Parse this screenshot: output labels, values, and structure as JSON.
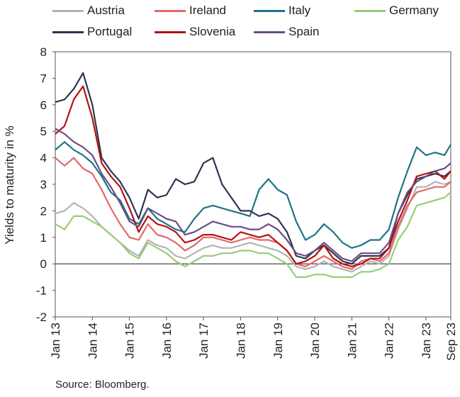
{
  "legend": [
    {
      "name": "Austria",
      "color": "#b3b3b3"
    },
    {
      "name": "Ireland",
      "color": "#e06a6a"
    },
    {
      "name": "Italy",
      "color": "#1e7485"
    },
    {
      "name": "Germany",
      "color": "#99cc77"
    },
    {
      "name": "Portugal",
      "color": "#2b3650"
    },
    {
      "name": "Slovenia",
      "color": "#b31212"
    },
    {
      "name": "Spain",
      "color": "#6b4d83"
    }
  ],
  "source": "Source: Bloomberg.",
  "chart_data": {
    "type": "line",
    "title": "",
    "ylabel": "Yields to maturity in %",
    "xlabel": "",
    "ylim": [
      -2,
      8
    ],
    "xlim": [
      2013.0,
      2023.67
    ],
    "yticks": [
      "8",
      "7",
      "6",
      "5",
      "4",
      "3",
      "2",
      "1",
      "0",
      "-1",
      "-2"
    ],
    "xticks": [
      "Jan 13",
      "Jan 14",
      "Jan 15",
      "Jan 16",
      "Jan 17",
      "Jan 18",
      "Jan 19",
      "Jan 20",
      "Jan 21",
      "Jan 22",
      "Jan 23",
      "Sep 23"
    ],
    "grid": false,
    "zero_line": true,
    "legend_position": "top",
    "series": [
      {
        "name": "Austria",
        "color": "#b3b3b3",
        "x": [
          2013.0,
          2013.25,
          2013.5,
          2013.75,
          2014.0,
          2014.25,
          2014.5,
          2014.75,
          2015.0,
          2015.25,
          2015.5,
          2015.75,
          2016.0,
          2016.25,
          2016.5,
          2016.75,
          2017.0,
          2017.25,
          2017.5,
          2017.75,
          2018.0,
          2018.25,
          2018.5,
          2018.75,
          2019.0,
          2019.25,
          2019.5,
          2019.75,
          2020.0,
          2020.25,
          2020.5,
          2020.75,
          2021.0,
          2021.25,
          2021.5,
          2021.75,
          2022.0,
          2022.25,
          2022.5,
          2022.75,
          2023.0,
          2023.25,
          2023.5,
          2023.67
        ],
        "values": [
          1.9,
          2.0,
          2.3,
          2.1,
          1.8,
          1.4,
          1.1,
          0.8,
          0.5,
          0.3,
          0.9,
          0.7,
          0.6,
          0.3,
          0.2,
          0.4,
          0.6,
          0.7,
          0.6,
          0.6,
          0.7,
          0.8,
          0.7,
          0.6,
          0.5,
          0.3,
          -0.1,
          -0.2,
          -0.1,
          0.1,
          -0.1,
          -0.2,
          -0.3,
          -0.1,
          0.1,
          0.0,
          0.3,
          1.3,
          2.1,
          2.9,
          2.9,
          3.1,
          3.0,
          3.1
        ]
      },
      {
        "name": "Ireland",
        "color": "#e06a6a",
        "x": [
          2013.0,
          2013.25,
          2013.5,
          2013.75,
          2014.0,
          2014.25,
          2014.5,
          2014.75,
          2015.0,
          2015.25,
          2015.5,
          2015.75,
          2016.0,
          2016.25,
          2016.5,
          2016.75,
          2017.0,
          2017.25,
          2017.5,
          2017.75,
          2018.0,
          2018.25,
          2018.5,
          2018.75,
          2019.0,
          2019.25,
          2019.5,
          2019.75,
          2020.0,
          2020.25,
          2020.5,
          2020.75,
          2021.0,
          2021.25,
          2021.5,
          2021.75,
          2022.0,
          2022.25,
          2022.5,
          2022.75,
          2023.0,
          2023.25,
          2023.5,
          2023.67
        ],
        "values": [
          4.0,
          3.7,
          4.0,
          3.6,
          3.4,
          2.8,
          2.1,
          1.5,
          1.0,
          0.9,
          1.5,
          1.1,
          1.0,
          0.8,
          0.5,
          0.7,
          1.0,
          1.0,
          0.9,
          0.8,
          0.9,
          1.0,
          0.9,
          0.9,
          0.8,
          0.5,
          0.0,
          -0.1,
          0.1,
          0.3,
          0.1,
          -0.1,
          -0.2,
          0.1,
          0.2,
          0.1,
          0.4,
          1.4,
          2.2,
          2.7,
          2.8,
          2.9,
          2.9,
          3.1
        ]
      },
      {
        "name": "Italy",
        "color": "#1e7485",
        "x": [
          2013.0,
          2013.25,
          2013.5,
          2013.75,
          2014.0,
          2014.25,
          2014.5,
          2014.75,
          2015.0,
          2015.25,
          2015.5,
          2015.75,
          2016.0,
          2016.25,
          2016.5,
          2016.75,
          2017.0,
          2017.25,
          2017.5,
          2017.75,
          2018.0,
          2018.25,
          2018.5,
          2018.75,
          2019.0,
          2019.25,
          2019.5,
          2019.75,
          2020.0,
          2020.25,
          2020.5,
          2020.75,
          2021.0,
          2021.25,
          2021.5,
          2021.75,
          2022.0,
          2022.25,
          2022.5,
          2022.75,
          2023.0,
          2023.25,
          2023.5,
          2023.67
        ],
        "values": [
          4.3,
          4.6,
          4.3,
          4.1,
          3.8,
          3.3,
          2.7,
          2.4,
          1.7,
          1.5,
          2.1,
          1.7,
          1.5,
          1.3,
          1.2,
          1.7,
          2.1,
          2.2,
          2.1,
          2.0,
          1.9,
          1.8,
          2.8,
          3.2,
          2.8,
          2.6,
          1.6,
          0.9,
          1.1,
          1.5,
          1.2,
          0.8,
          0.6,
          0.7,
          0.9,
          0.9,
          1.3,
          2.5,
          3.5,
          4.4,
          4.1,
          4.2,
          4.1,
          4.5
        ]
      },
      {
        "name": "Germany",
        "color": "#99cc77",
        "x": [
          2013.0,
          2013.25,
          2013.5,
          2013.75,
          2014.0,
          2014.25,
          2014.5,
          2014.75,
          2015.0,
          2015.25,
          2015.5,
          2015.75,
          2016.0,
          2016.25,
          2016.5,
          2016.75,
          2017.0,
          2017.25,
          2017.5,
          2017.75,
          2018.0,
          2018.25,
          2018.5,
          2018.75,
          2019.0,
          2019.25,
          2019.5,
          2019.75,
          2020.0,
          2020.25,
          2020.5,
          2020.75,
          2021.0,
          2021.25,
          2021.5,
          2021.75,
          2022.0,
          2022.25,
          2022.5,
          2022.75,
          2023.0,
          2023.25,
          2023.5,
          2023.67
        ],
        "values": [
          1.5,
          1.3,
          1.8,
          1.8,
          1.6,
          1.4,
          1.1,
          0.8,
          0.4,
          0.2,
          0.8,
          0.6,
          0.4,
          0.1,
          -0.1,
          0.1,
          0.3,
          0.3,
          0.4,
          0.4,
          0.5,
          0.5,
          0.4,
          0.4,
          0.2,
          0.0,
          -0.5,
          -0.5,
          -0.4,
          -0.4,
          -0.5,
          -0.5,
          -0.5,
          -0.3,
          -0.3,
          -0.2,
          0.0,
          0.9,
          1.4,
          2.2,
          2.3,
          2.4,
          2.5,
          2.7
        ]
      },
      {
        "name": "Portugal",
        "color": "#2b3650",
        "x": [
          2013.0,
          2013.25,
          2013.5,
          2013.75,
          2014.0,
          2014.25,
          2014.5,
          2014.75,
          2015.0,
          2015.25,
          2015.5,
          2015.75,
          2016.0,
          2016.25,
          2016.5,
          2016.75,
          2017.0,
          2017.25,
          2017.5,
          2017.75,
          2018.0,
          2018.25,
          2018.5,
          2018.75,
          2019.0,
          2019.25,
          2019.5,
          2019.75,
          2020.0,
          2020.25,
          2020.5,
          2020.75,
          2021.0,
          2021.25,
          2021.5,
          2021.75,
          2022.0,
          2022.25,
          2022.5,
          2022.75,
          2023.0,
          2023.25,
          2023.5,
          2023.67
        ],
        "values": [
          6.1,
          6.2,
          6.6,
          7.2,
          6.0,
          4.0,
          3.5,
          3.1,
          2.5,
          1.7,
          2.8,
          2.5,
          2.6,
          3.2,
          3.0,
          3.1,
          3.8,
          4.0,
          3.0,
          2.5,
          2.0,
          2.0,
          1.8,
          1.9,
          1.7,
          1.2,
          0.3,
          0.2,
          0.5,
          0.7,
          0.4,
          0.1,
          0.0,
          0.3,
          0.3,
          0.3,
          0.6,
          1.9,
          2.6,
          3.2,
          3.3,
          3.4,
          3.3,
          3.5
        ]
      },
      {
        "name": "Slovenia",
        "color": "#b31212",
        "x": [
          2013.0,
          2013.25,
          2013.5,
          2013.75,
          2014.0,
          2014.25,
          2014.5,
          2014.75,
          2015.0,
          2015.25,
          2015.5,
          2015.75,
          2016.0,
          2016.25,
          2016.5,
          2016.75,
          2017.0,
          2017.25,
          2017.5,
          2017.75,
          2018.0,
          2018.25,
          2018.5,
          2018.75,
          2019.0,
          2019.25,
          2019.5,
          2019.75,
          2020.0,
          2020.25,
          2020.5,
          2020.75,
          2021.0,
          2021.25,
          2021.5,
          2021.75,
          2022.0,
          2022.25,
          2022.5,
          2022.75,
          2023.0,
          2023.25,
          2023.5,
          2023.67
        ],
        "values": [
          4.9,
          5.2,
          6.2,
          6.7,
          5.5,
          3.8,
          3.3,
          2.9,
          2.1,
          1.2,
          1.8,
          1.5,
          1.4,
          1.2,
          0.8,
          0.9,
          1.1,
          1.1,
          1.0,
          0.9,
          1.2,
          1.1,
          1.0,
          1.1,
          0.8,
          0.5,
          0.0,
          0.1,
          0.3,
          0.7,
          0.2,
          0.0,
          -0.1,
          0.0,
          0.2,
          0.2,
          0.6,
          1.6,
          2.4,
          3.3,
          3.4,
          3.5,
          3.2,
          3.5
        ]
      },
      {
        "name": "Spain",
        "color": "#6b4d83",
        "x": [
          2013.0,
          2013.25,
          2013.5,
          2013.75,
          2014.0,
          2014.25,
          2014.5,
          2014.75,
          2015.0,
          2015.25,
          2015.5,
          2015.75,
          2016.0,
          2016.25,
          2016.5,
          2016.75,
          2017.0,
          2017.25,
          2017.5,
          2017.75,
          2018.0,
          2018.25,
          2018.5,
          2018.75,
          2019.0,
          2019.25,
          2019.5,
          2019.75,
          2020.0,
          2020.25,
          2020.5,
          2020.75,
          2021.0,
          2021.25,
          2021.5,
          2021.75,
          2022.0,
          2022.25,
          2022.5,
          2022.75,
          2023.0,
          2023.25,
          2023.5,
          2023.67
        ],
        "values": [
          5.1,
          4.9,
          4.6,
          4.4,
          4.1,
          3.4,
          2.9,
          2.3,
          1.6,
          1.4,
          2.1,
          1.9,
          1.7,
          1.6,
          1.1,
          1.2,
          1.4,
          1.6,
          1.5,
          1.4,
          1.4,
          1.3,
          1.3,
          1.5,
          1.3,
          0.9,
          0.4,
          0.3,
          0.5,
          0.8,
          0.5,
          0.2,
          0.1,
          0.4,
          0.4,
          0.4,
          0.8,
          1.9,
          2.7,
          3.1,
          3.3,
          3.5,
          3.6,
          3.8
        ]
      }
    ]
  }
}
